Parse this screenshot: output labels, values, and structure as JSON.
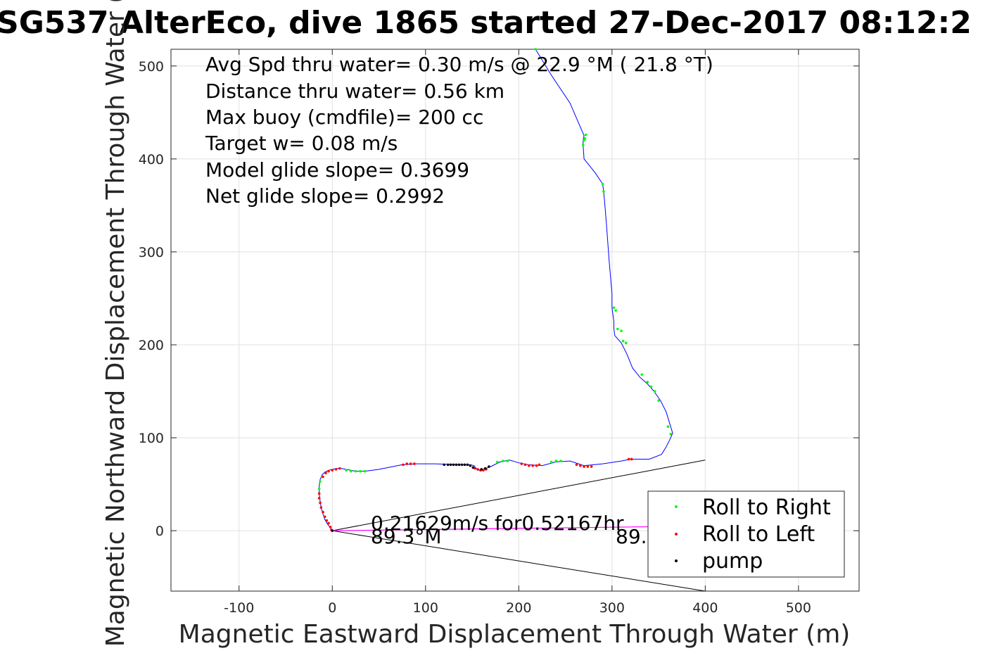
{
  "chart_data": {
    "type": "scatter",
    "title": "SG537 AlterEco, dive 1865 started 27-Dec-2017 08:12:2",
    "xlabel": "Magnetic Eastward Displacement Through Water (m)",
    "ylabel": "Magnetic Northward Displacement Through Water (",
    "xlim": [
      -173,
      565
    ],
    "ylim": [
      -65,
      518
    ],
    "xticks": [
      -100,
      0,
      100,
      200,
      300,
      400,
      500
    ],
    "yticks": [
      0,
      100,
      200,
      300,
      400,
      500
    ],
    "grid": true,
    "legend_position": "lower-right",
    "annotations": [
      "Avg Spd thru water=  0.30 m/s @  22.9 °M ( 21.8 °T)",
      "Distance thru water=  0.56 km",
      "Max buoy (cmdfile)= 200 cc",
      "Target w= 0.08 m/s",
      "Model glide slope= 0.3699",
      "Net glide slope= 0.2992"
    ],
    "current_label": "0.21629m/s for0.52167hr",
    "heading_left": "89.3°M",
    "heading_right": "89.",
    "track": {
      "name": "track",
      "color": "#0000ff",
      "x": [
        0,
        -2,
        -5,
        -8,
        -10,
        -12,
        -13,
        -14,
        -14,
        -13,
        -11,
        -8,
        -4,
        0,
        5,
        10,
        15,
        25,
        35,
        50,
        75,
        90,
        110,
        140,
        148,
        152,
        156,
        162,
        170,
        180,
        190,
        200,
        210,
        225,
        240,
        255,
        270,
        290,
        310,
        320,
        340,
        353,
        358,
        362,
        365,
        362,
        358,
        352,
        345,
        338,
        330,
        322,
        316,
        310,
        303,
        302,
        302,
        300,
        300,
        297,
        294,
        292,
        291,
        290,
        282,
        270,
        269,
        269,
        270,
        255,
        235,
        218
      ],
      "y": [
        0,
        3,
        7,
        12,
        18,
        25,
        32,
        40,
        48,
        55,
        60,
        63,
        65,
        66,
        67,
        67,
        66,
        64,
        64,
        66,
        71,
        72,
        72,
        71,
        71,
        70,
        65,
        66,
        69,
        74,
        76,
        73,
        71,
        70,
        74,
        75,
        70,
        72,
        75,
        77,
        77,
        82,
        90,
        98,
        105,
        115,
        128,
        140,
        150,
        158,
        165,
        175,
        190,
        202,
        210,
        217,
        225,
        240,
        255,
        290,
        330,
        355,
        365,
        373,
        385,
        400,
        415,
        420,
        425,
        460,
        490,
        518
      ]
    },
    "series": [
      {
        "name": "Roll to Right",
        "color": "#00ff00",
        "x": [
          -14,
          -13,
          -11,
          15,
          20,
          25,
          30,
          35,
          177,
          183,
          188,
          235,
          240,
          245,
          302,
          304,
          306,
          310,
          312,
          315,
          332,
          338,
          342,
          346,
          350,
          360,
          363,
          269,
          270,
          271,
          272,
          290,
          291,
          218
        ],
        "y": [
          45,
          53,
          58,
          65,
          64,
          64,
          64,
          64,
          74,
          75,
          75,
          74,
          75,
          75,
          240,
          237,
          217,
          215,
          204,
          202,
          168,
          160,
          155,
          150,
          140,
          112,
          104,
          415,
          420,
          422,
          426,
          373,
          365,
          518
        ]
      },
      {
        "name": "Roll to Left",
        "color": "#ff0000",
        "x": [
          -1,
          -2,
          -4,
          -6,
          -8,
          -10,
          -12,
          -13,
          -14,
          -14,
          -10,
          -7,
          -4,
          0,
          4,
          8,
          76,
          80,
          84,
          88,
          153,
          156,
          159,
          162,
          165,
          203,
          207,
          211,
          215,
          219,
          222,
          262,
          266,
          270,
          274,
          278,
          318,
          321
        ],
        "y": [
          1,
          4,
          8,
          11,
          15,
          20,
          25,
          30,
          35,
          40,
          58,
          62,
          64,
          65,
          66,
          67,
          71,
          72,
          72,
          72,
          67,
          66,
          65,
          65,
          66,
          72,
          71,
          70,
          70,
          70,
          71,
          71,
          70,
          69,
          69,
          69,
          77,
          77
        ]
      },
      {
        "name": "pump",
        "color": "#000000",
        "x": [
          120,
          124,
          127,
          130,
          133,
          136,
          139,
          142,
          145,
          148,
          151,
          160,
          164,
          168,
          0
        ],
        "y": [
          71,
          71,
          71,
          71,
          71,
          71,
          71,
          71,
          71,
          70,
          68,
          66,
          67,
          69,
          0
        ]
      }
    ]
  }
}
